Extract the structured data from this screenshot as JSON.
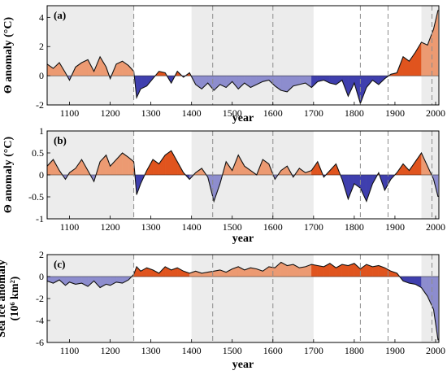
{
  "colors": {
    "warm_dark": "#e0541e",
    "warm_light": "#ec9a72",
    "cool_dark": "#3f3fae",
    "cool_light": "#8d8dce",
    "shade": "#ececec",
    "dashed": "#8c8c8c"
  },
  "chart_data": [
    {
      "type": "area",
      "panel": "(a)",
      "ylabel": "Θ anomaly (°C)",
      "xlabel": "year",
      "xlim": [
        1045,
        2008
      ],
      "ylim": [
        -2,
        4.8
      ],
      "yticks": [
        -2,
        0,
        2,
        4
      ],
      "xticks": [
        1100,
        1200,
        1300,
        1400,
        1500,
        1600,
        1700,
        1800,
        1900,
        2000
      ],
      "shaded_periods": [
        [
          1045,
          1258
        ],
        [
          1400,
          1700
        ],
        [
          1965,
          2008
        ]
      ],
      "dashed_years": [
        1258,
        1452,
        1600,
        1815,
        1883,
        1991
      ],
      "series": [
        {
          "x": [
            1045,
            1060,
            1075,
            1090,
            1100,
            1115,
            1130,
            1145,
            1160,
            1175,
            1190,
            1200,
            1215,
            1230,
            1245,
            1258,
            1265,
            1275,
            1290,
            1305,
            1320,
            1335,
            1350,
            1365,
            1380,
            1395,
            1410,
            1425,
            1440,
            1455,
            1470,
            1485,
            1500,
            1515,
            1530,
            1545,
            1560,
            1575,
            1590,
            1605,
            1620,
            1635,
            1650,
            1665,
            1680,
            1695,
            1710,
            1725,
            1740,
            1755,
            1770,
            1785,
            1800,
            1815,
            1830,
            1845,
            1860,
            1875,
            1890,
            1905,
            1920,
            1935,
            1950,
            1965,
            1980,
            1995,
            2006
          ],
          "y": [
            0.8,
            0.5,
            0.9,
            0.2,
            -0.3,
            0.6,
            0.9,
            1.1,
            0.3,
            1.3,
            0.6,
            -0.2,
            0.8,
            1.0,
            0.7,
            0.3,
            -1.5,
            -0.9,
            -0.7,
            -0.2,
            0.3,
            0.2,
            -0.5,
            0.3,
            -0.1,
            0.2,
            -0.6,
            -0.9,
            -0.5,
            -1.0,
            -0.6,
            -0.8,
            -0.4,
            -0.9,
            -0.5,
            -0.8,
            -0.6,
            -0.4,
            -0.3,
            -0.7,
            -1.0,
            -1.1,
            -0.7,
            -0.6,
            -0.5,
            -0.8,
            -0.4,
            -0.3,
            -0.5,
            -0.6,
            -0.3,
            -1.4,
            -0.5,
            -1.9,
            -0.8,
            -0.3,
            -0.6,
            -0.2,
            0.1,
            0.2,
            1.3,
            1.0,
            1.6,
            2.3,
            2.1,
            3.2,
            4.5
          ]
        }
      ]
    },
    {
      "type": "area",
      "panel": "(b)",
      "ylabel": "Θ anomaly (°C)",
      "xlabel": "year",
      "xlim": [
        1045,
        2008
      ],
      "ylim": [
        -1,
        1
      ],
      "yticks": [
        -1,
        -0.5,
        0,
        0.5,
        1
      ],
      "xticks": [
        1100,
        1200,
        1300,
        1400,
        1500,
        1600,
        1700,
        1800,
        1900,
        2000
      ],
      "shaded_periods": [
        [
          1045,
          1258
        ],
        [
          1400,
          1700
        ],
        [
          1965,
          2008
        ]
      ],
      "dashed_years": [
        1258,
        1452,
        1600,
        1815,
        1883,
        1991
      ],
      "series": [
        {
          "x": [
            1045,
            1060,
            1075,
            1090,
            1100,
            1115,
            1130,
            1145,
            1160,
            1175,
            1190,
            1200,
            1215,
            1230,
            1245,
            1258,
            1265,
            1275,
            1290,
            1305,
            1320,
            1335,
            1350,
            1365,
            1380,
            1395,
            1410,
            1425,
            1440,
            1455,
            1470,
            1485,
            1500,
            1515,
            1530,
            1545,
            1560,
            1575,
            1590,
            1605,
            1620,
            1635,
            1650,
            1665,
            1680,
            1695,
            1710,
            1725,
            1740,
            1755,
            1770,
            1785,
            1800,
            1815,
            1830,
            1845,
            1860,
            1875,
            1890,
            1905,
            1920,
            1935,
            1950,
            1965,
            1980,
            1995,
            2006
          ],
          "y": [
            0.2,
            0.35,
            0.1,
            -0.1,
            0.05,
            0.15,
            0.35,
            0.1,
            -0.15,
            0.3,
            0.45,
            0.2,
            0.35,
            0.5,
            0.4,
            0.3,
            -0.45,
            -0.2,
            0.1,
            0.35,
            0.25,
            0.45,
            0.55,
            0.3,
            0.05,
            -0.1,
            0.05,
            0.15,
            -0.05,
            -0.6,
            -0.2,
            0.3,
            0.1,
            0.45,
            0.2,
            0.1,
            0.0,
            0.35,
            0.25,
            -0.1,
            0.1,
            0.2,
            -0.05,
            0.15,
            0.05,
            0.1,
            0.3,
            -0.05,
            0.1,
            0.25,
            -0.1,
            -0.55,
            -0.2,
            -0.3,
            -0.6,
            -0.2,
            0.05,
            -0.35,
            -0.1,
            0.05,
            0.25,
            0.1,
            0.3,
            0.5,
            0.2,
            -0.1,
            -0.5
          ]
        }
      ]
    },
    {
      "type": "area",
      "panel": "(c)",
      "ylabel": "Sea ice anomaly (10⁶ km²)",
      "xlabel": "year",
      "xlim": [
        1045,
        2008
      ],
      "ylim": [
        -6,
        2
      ],
      "yticks": [
        -6,
        -4,
        -2,
        0,
        2
      ],
      "xticks": [
        1100,
        1200,
        1300,
        1400,
        1500,
        1600,
        1700,
        1800,
        1900,
        2000
      ],
      "shaded_periods": [
        [
          1045,
          1258
        ],
        [
          1400,
          1700
        ],
        [
          1965,
          2008
        ]
      ],
      "dashed_years": [
        1258,
        1452,
        1600,
        1815,
        1883,
        1991
      ],
      "series": [
        {
          "x": [
            1045,
            1060,
            1075,
            1090,
            1100,
            1115,
            1130,
            1145,
            1160,
            1175,
            1190,
            1200,
            1215,
            1230,
            1245,
            1258,
            1265,
            1275,
            1290,
            1305,
            1320,
            1335,
            1350,
            1365,
            1380,
            1395,
            1410,
            1425,
            1440,
            1455,
            1470,
            1485,
            1500,
            1515,
            1530,
            1545,
            1560,
            1575,
            1590,
            1605,
            1620,
            1635,
            1650,
            1665,
            1680,
            1695,
            1710,
            1725,
            1740,
            1755,
            1770,
            1785,
            1800,
            1815,
            1830,
            1845,
            1860,
            1875,
            1890,
            1905,
            1920,
            1935,
            1950,
            1965,
            1980,
            1995,
            2006
          ],
          "y": [
            -0.4,
            -0.6,
            -0.3,
            -0.8,
            -0.5,
            -0.7,
            -0.6,
            -0.9,
            -0.4,
            -1.0,
            -0.7,
            -0.8,
            -0.5,
            -0.6,
            -0.3,
            0.2,
            0.9,
            0.5,
            0.8,
            0.6,
            0.3,
            0.9,
            0.6,
            0.8,
            0.5,
            0.3,
            0.5,
            0.3,
            0.4,
            0.5,
            0.6,
            0.4,
            0.7,
            0.9,
            0.6,
            0.8,
            0.7,
            0.5,
            0.9,
            0.8,
            1.3,
            1.0,
            1.1,
            0.8,
            0.9,
            1.1,
            1.0,
            0.9,
            1.2,
            0.8,
            1.1,
            1.0,
            1.2,
            0.7,
            1.1,
            0.9,
            1.0,
            0.8,
            0.5,
            0.3,
            -0.4,
            -0.6,
            -0.7,
            -1.0,
            -1.8,
            -3.0,
            -5.8
          ]
        }
      ]
    }
  ]
}
